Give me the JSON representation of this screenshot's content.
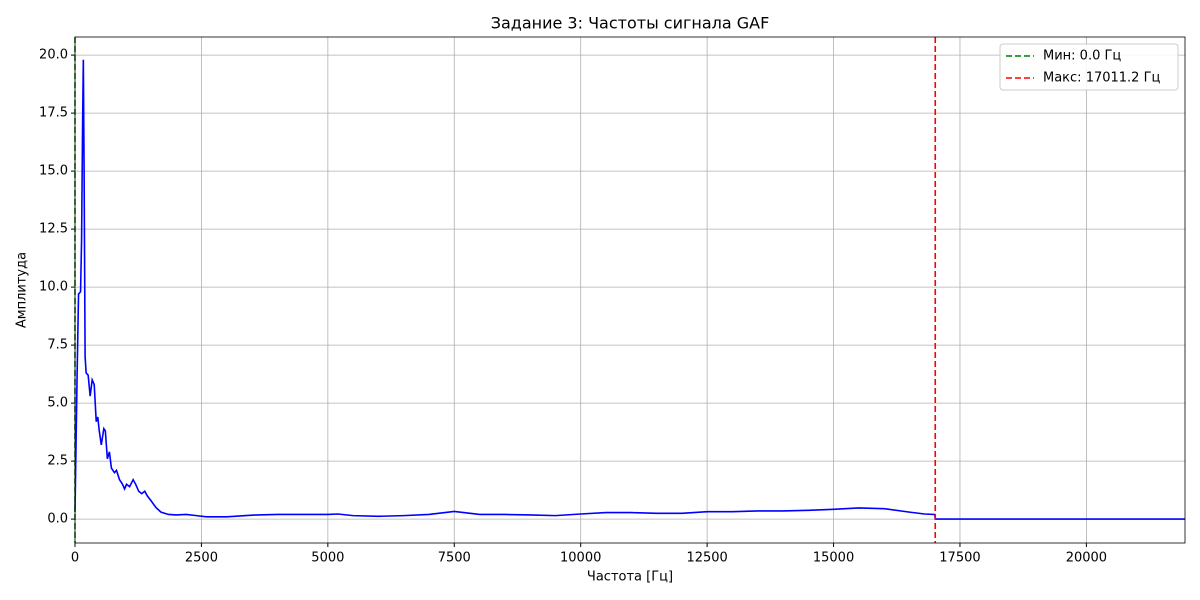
{
  "chart_data": {
    "type": "line",
    "title": "Задание 3: Частоты сигнала GAF",
    "xlabel": "Частота [Гц]",
    "ylabel": "Амплитуда",
    "x": [
      0,
      40,
      70,
      110,
      130,
      150,
      165,
      180,
      200,
      220,
      260,
      300,
      340,
      380,
      420,
      450,
      480,
      520,
      570,
      600,
      640,
      680,
      720,
      780,
      820,
      880,
      940,
      980,
      1020,
      1080,
      1150,
      1200,
      1260,
      1320,
      1380,
      1430,
      1500,
      1600,
      1700,
      1850,
      2000,
      2200,
      2400,
      2600,
      3000,
      3500,
      4000,
      4500,
      5000,
      5200,
      5500,
      6000,
      6500,
      7000,
      7500,
      8000,
      8500,
      9000,
      9500,
      10000,
      10500,
      11000,
      11500,
      12000,
      12500,
      13000,
      13500,
      14000,
      14500,
      15000,
      15500,
      16000,
      16500,
      16800,
      17000,
      17011,
      18000,
      20000,
      21950
    ],
    "series": [
      {
        "color": "#0000ff",
        "values": [
          0.3,
          6,
          9.7,
          9.8,
          12,
          17,
          19.8,
          15,
          7,
          6.3,
          6.2,
          5.3,
          6,
          5.8,
          4.2,
          4.4,
          3.8,
          3.2,
          3.9,
          3.8,
          2.6,
          2.9,
          2.2,
          2.0,
          2.1,
          1.7,
          1.5,
          1.3,
          1.5,
          1.4,
          1.7,
          1.5,
          1.2,
          1.1,
          1.2,
          1.0,
          0.8,
          0.5,
          0.3,
          0.2,
          0.18,
          0.2,
          0.15,
          0.1,
          0.1,
          0.17,
          0.2,
          0.2,
          0.2,
          0.22,
          0.15,
          0.12,
          0.15,
          0.2,
          0.33,
          0.2,
          0.2,
          0.18,
          0.15,
          0.22,
          0.28,
          0.28,
          0.25,
          0.25,
          0.32,
          0.32,
          0.35,
          0.35,
          0.38,
          0.42,
          0.48,
          0.45,
          0.3,
          0.22,
          0.2,
          0,
          0,
          0,
          0
        ]
      }
    ],
    "vlines": [
      {
        "name": "Мин: 0.0 Гц",
        "x": 0.0,
        "color": "#008000"
      },
      {
        "name": "Макс: 17011.2 Гц",
        "x": 17011.2,
        "color": "#ff0000"
      }
    ],
    "xlim": [
      0,
      21950
    ],
    "ylim": [
      -1.03,
      20.78
    ],
    "xticks": [
      0,
      2500,
      5000,
      7500,
      10000,
      12500,
      15000,
      17500,
      20000
    ],
    "yticks": [
      {
        "value": 0,
        "label": "0.0"
      },
      2.5,
      {
        "value": 5,
        "label": "5.0"
      },
      7.5,
      {
        "value": 10,
        "label": "10.0"
      },
      12.5,
      {
        "value": 15,
        "label": "15.0"
      },
      17.5,
      {
        "value": 20,
        "label": "20.0"
      }
    ],
    "grid": true,
    "legend": "upper right"
  }
}
